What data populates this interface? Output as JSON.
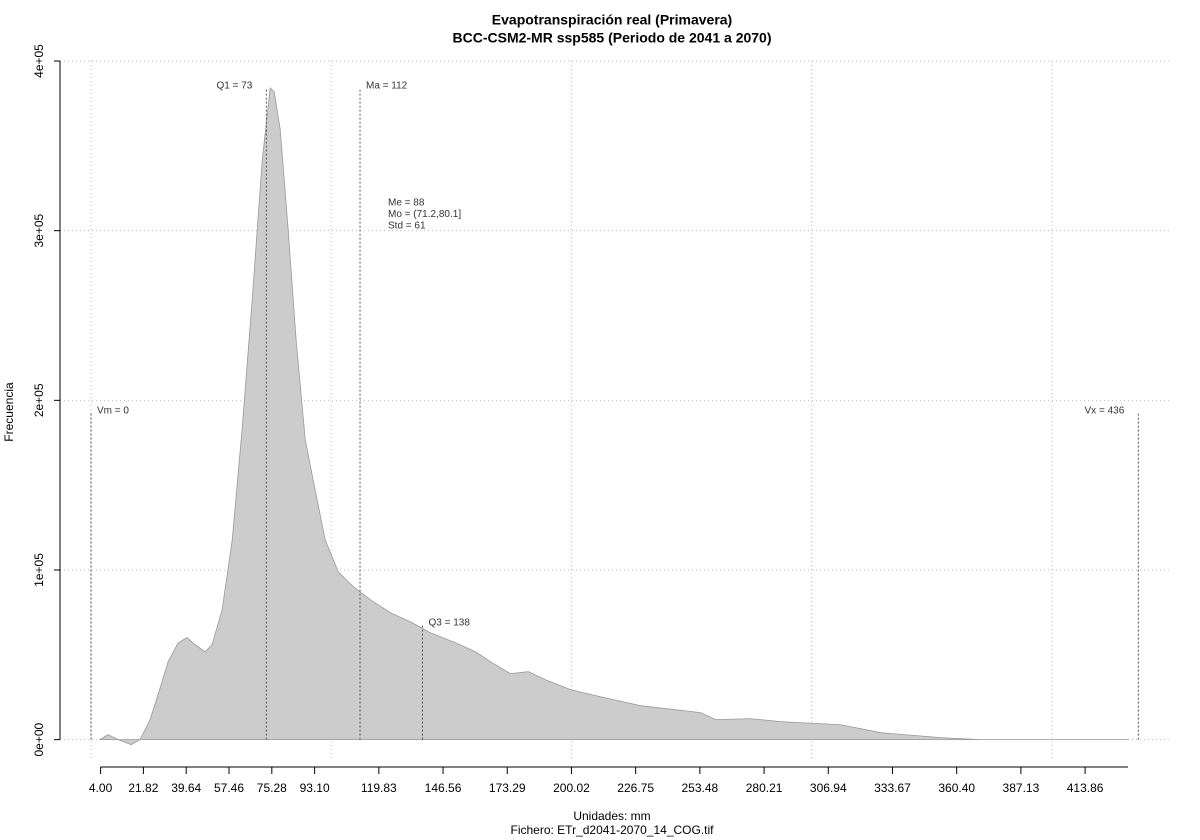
{
  "chart_data": {
    "type": "area",
    "title": "Evapotranspiración real (Primavera)",
    "subtitle": "BCC-CSM2-MR ssp585 (Periodo de 2041 a 2070)",
    "x_label": "Unidades: mm",
    "caption": "Fichero: ETr_d2041-2070_14_COG.tif",
    "y_label": "Frecuencia",
    "x": [
      3.8,
      7.1,
      11.3,
      16.7,
      20.4,
      24.6,
      28.8,
      32.1,
      36.3,
      40,
      43.3,
      47.5,
      50.4,
      54.6,
      58.8,
      62.9,
      67.1,
      71.3,
      74.6,
      76.3,
      78.8,
      82.1,
      85.4,
      89.2,
      93.3,
      97.5,
      102.9,
      108.8,
      116.3,
      124.6,
      132.9,
      141.3,
      151.7,
      160,
      168.3,
      174.6,
      182.1,
      189.2,
      199.6,
      212.1,
      228.8,
      253.8,
      260,
      274.6,
      287.1,
      312.1,
      328.8,
      353.8,
      370.4,
      432
    ],
    "values": [
      0,
      2950,
      0,
      -2950,
      0,
      11800,
      30600,
      45900,
      57100,
      60100,
      56000,
      51800,
      56000,
      76600,
      117800,
      182600,
      259200,
      341700,
      384100,
      381700,
      359400,
      300400,
      235600,
      176700,
      147300,
      117800,
      99000,
      90700,
      82500,
      74800,
      69500,
      63000,
      57100,
      51800,
      44200,
      38900,
      40100,
      35300,
      29500,
      25300,
      20000,
      15900,
      11800,
      12400,
      10600,
      8800,
      4100,
      1200,
      0,
      0
    ],
    "color": "#cccccc",
    "xlim": [
      -12.9,
      449.2
    ],
    "ylim": [
      -12000,
      400000
    ],
    "xticks": [
      {
        "value": 4,
        "label": "4.00"
      },
      21.82,
      39.64,
      57.46,
      75.28,
      {
        "value": 93.1,
        "label": "93.10"
      },
      119.83,
      146.56,
      173.29,
      {
        "value": 200.02,
        "label": "200.02"
      },
      226.75,
      253.48,
      280.21,
      306.94,
      333.67,
      {
        "value": 360.4,
        "label": "360.40"
      },
      387.13,
      413.86
    ],
    "yticks": [
      {
        "value": 0,
        "label": "0e+00"
      },
      {
        "value": 100000,
        "label": "1e+05"
      },
      {
        "value": 200000,
        "label": "2e+05"
      },
      {
        "value": 300000,
        "label": "3e+05"
      },
      {
        "value": 400000,
        "label": "4e+05"
      }
    ],
    "xgrid": [
      0,
      100,
      200,
      300,
      400
    ],
    "grid": true,
    "markers": [
      {
        "label": "Vm = 0",
        "value": 0
      },
      {
        "label": "Q1 = 73",
        "value": 73
      },
      {
        "label": "Ma = 112",
        "value": 112
      },
      {
        "label": "Q3 = 138",
        "value": 138
      },
      {
        "label": "Vx = 436",
        "value": 436
      }
    ],
    "stats": [
      "Me = 88",
      "Mo = (71.2,80.1]",
      "Std = 61"
    ]
  }
}
